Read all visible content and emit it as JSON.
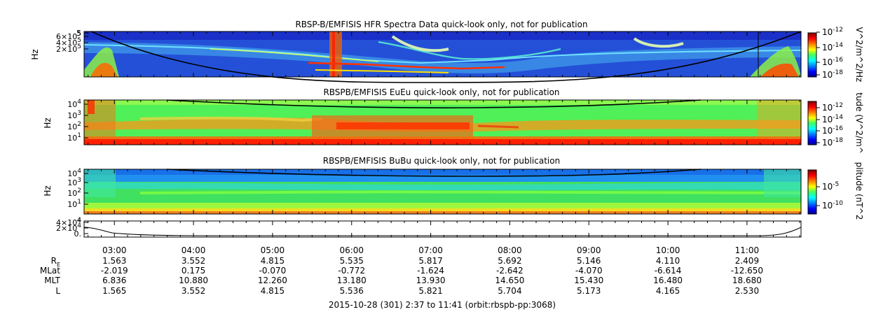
{
  "chart_data": {
    "type": "heatmap",
    "panels": [
      {
        "id": "hfr",
        "title": "RBSP-B/EMFISIS  HFR Spectra Data quick-look only, not for publication",
        "ylabel": "Hz",
        "yticks": [
          {
            "label": "5",
            "sup": ""
          },
          {
            "label": "6×10",
            "sup": "5"
          },
          {
            "label": "4×10",
            "sup": "5"
          },
          {
            "label": "2×10",
            "sup": "5"
          }
        ],
        "colorbar_label": "V^2/m^2/Hz",
        "colorbar_ticks": [
          {
            "label": "10",
            "sup": "-12"
          },
          {
            "label": "10",
            "sup": "-14"
          },
          {
            "label": "10",
            "sup": "-16"
          },
          {
            "label": "10",
            "sup": "-18"
          }
        ]
      },
      {
        "id": "eueu",
        "title": "RBSPB/EMFISIS  EuEu quick-look only, not for publication",
        "ylabel": "Hz",
        "yticks": [
          {
            "label": "10",
            "sup": "4"
          },
          {
            "label": "10",
            "sup": "3"
          },
          {
            "label": "10",
            "sup": "2"
          },
          {
            "label": "10",
            "sup": "1"
          }
        ],
        "colorbar_label": "tude (V^2/m^",
        "colorbar_ticks": [
          {
            "label": "10",
            "sup": "-12"
          },
          {
            "label": "10",
            "sup": "-14"
          },
          {
            "label": "10",
            "sup": "-16"
          },
          {
            "label": "10",
            "sup": "-18"
          }
        ]
      },
      {
        "id": "bubu",
        "title": "RBSPB/EMFISIS  BuBu quick-look only, not for publication",
        "ylabel": "Hz",
        "yticks": [
          {
            "label": "10",
            "sup": "4"
          },
          {
            "label": "10",
            "sup": "3"
          },
          {
            "label": "10",
            "sup": "2"
          },
          {
            "label": "10",
            "sup": "1"
          }
        ],
        "colorbar_label": "plitude (nT^2",
        "colorbar_ticks": [
          {
            "label": "10",
            "sup": "-5"
          },
          {
            "label": "10",
            "sup": "-10"
          }
        ]
      }
    ],
    "line_panel": {
      "yticks": [
        {
          "label": "4×10",
          "sup": "4"
        },
        {
          "label": "2×10",
          "sup": "4"
        },
        {
          "label": "0.",
          "sup": ""
        }
      ],
      "top_tick": "4"
    },
    "time_axis": {
      "start": "02:37",
      "end": "11:41",
      "ticks": [
        "03:00",
        "04:00",
        "05:00",
        "06:00",
        "07:00",
        "08:00",
        "09:00",
        "10:00",
        "11:00"
      ]
    },
    "ephemeris": {
      "rows": [
        {
          "label": "R",
          "sub": "E",
          "values": [
            "1.563",
            "3.552",
            "4.815",
            "5.535",
            "5.817",
            "5.692",
            "5.146",
            "4.110",
            "2.409"
          ]
        },
        {
          "label": "MLat",
          "sub": "",
          "values": [
            "-2.019",
            "0.175",
            "-0.070",
            "-0.772",
            "-1.624",
            "-2.642",
            "-4.070",
            "-6.614",
            "-12.650"
          ]
        },
        {
          "label": "MLT",
          "sub": "",
          "values": [
            "6.836",
            "10.880",
            "12.260",
            "13.180",
            "13.930",
            "14.650",
            "15.430",
            "16.480",
            "18.680"
          ]
        },
        {
          "label": "L",
          "sub": "",
          "values": [
            "1.565",
            "3.552",
            "4.815",
            "5.536",
            "5.821",
            "5.704",
            "5.173",
            "4.165",
            "2.530"
          ]
        }
      ]
    },
    "footer": "2015-10-28 (301) 2:37 to 11:41 (orbit:rbspb-pp:3068)"
  }
}
